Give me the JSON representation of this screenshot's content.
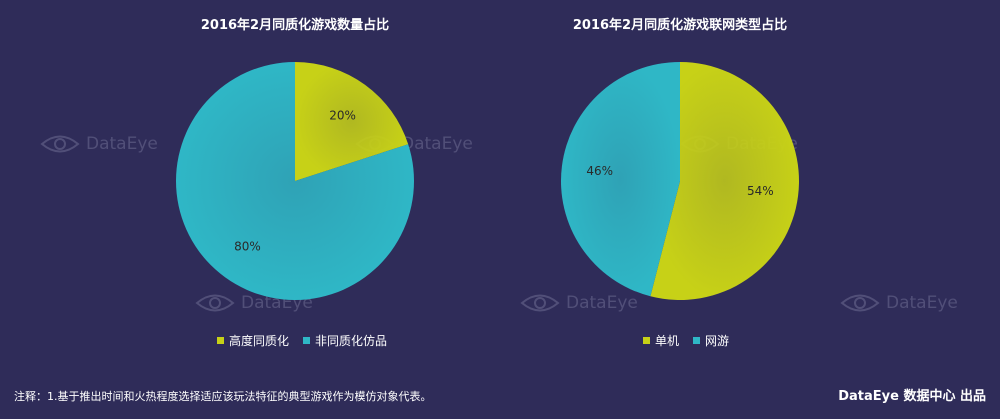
{
  "chart_data": [
    {
      "type": "pie",
      "title": "2016年2月同质化游戏数量占比",
      "categories": [
        "高度同质化",
        "非同质化仿品"
      ],
      "values": [
        20,
        80
      ],
      "labels": [
        "20%",
        "80%"
      ],
      "colors": [
        "#c7d117",
        "#2fb7c6"
      ],
      "legend": "bottom"
    },
    {
      "type": "pie",
      "title": "2016年2月同质化游戏联网类型占比",
      "categories": [
        "单机",
        "网游"
      ],
      "values": [
        54,
        46
      ],
      "labels": [
        "54%",
        "46%"
      ],
      "colors": [
        "#c7d117",
        "#2fb7c6"
      ],
      "legend": "bottom"
    }
  ],
  "watermark": "DataEye",
  "footnote": "注释：1.基于推出时间和火热程度选择适应该玩法特征的典型游戏作为模仿对象代表。",
  "brand": "DataEye 数据中心 出品"
}
